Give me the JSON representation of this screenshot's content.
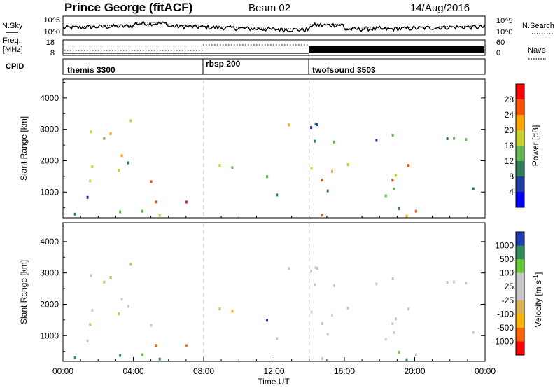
{
  "header": {
    "station": "Prince George (fitACF)",
    "beam": "Beam 02",
    "date": "14/Aug/2016"
  },
  "side_labels": {
    "nsky": "N.Sky",
    "nsearch": "N.Search",
    "freq_1": "Freq.",
    "freq_2": "[MHz]",
    "nave": "Nave",
    "cpid": "CPID",
    "noise_ticks": [
      "10^5",
      "10^0"
    ],
    "freq_ticks": [
      "18",
      "8"
    ],
    "nave_ticks": [
      "60",
      "0"
    ]
  },
  "cpid_segments": [
    "themis 3300",
    "rbsp 200",
    "twofsound 3503"
  ],
  "colorbars": {
    "power": {
      "label": "Power [dB]",
      "ticks": [
        "28",
        "24",
        "20",
        "16",
        "12",
        "8",
        "4"
      ]
    },
    "velocity": {
      "label_main": "Velocity [m s",
      "label_exp": "-1",
      "label_close": "]",
      "ticks": [
        "1000",
        "500",
        "100",
        "25",
        "-25",
        "-100",
        "-500",
        "-1000"
      ]
    }
  },
  "colors": {
    "power_scale": [
      "#0000ff",
      "#1c3da0",
      "#2e7d5a",
      "#64b450",
      "#c8d22d",
      "#ffa500",
      "#ff5000",
      "#ff0000"
    ],
    "velocity_scale": [
      "#ff0000",
      "#ff6400",
      "#ffb400",
      "#dcb450",
      "#c8c8c8",
      "#c8c8c8",
      "#64c832",
      "#2e8b57",
      "#1e3cb4"
    ]
  },
  "chart_data": [
    {
      "type": "heatmap",
      "name": "power",
      "ylabel": "Slant Range [km]",
      "xlabel": "",
      "yticks": [
        1000,
        2000,
        3000,
        4000
      ],
      "ylim": [
        180,
        4600
      ],
      "xlim": [
        0,
        24
      ],
      "colorbar_label": "Power [dB]",
      "colorbar_range": [
        0,
        32
      ]
    },
    {
      "type": "heatmap",
      "name": "velocity",
      "ylabel": "Slant Range [km]",
      "xlabel": "Time UT",
      "xticks": [
        "00:00",
        "04:00",
        "08:00",
        "12:00",
        "16:00",
        "20:00",
        "00:00"
      ],
      "yticks": [
        1000,
        2000,
        3000,
        4000
      ],
      "ylim": [
        180,
        4600
      ],
      "xlim": [
        0,
        24
      ],
      "colorbar_label": "Velocity [m s-1]",
      "colorbar_ticks": [
        1000,
        500,
        100,
        25,
        -25,
        -100,
        -500,
        -1000
      ]
    }
  ],
  "mode_change_times": [
    8,
    14
  ]
}
